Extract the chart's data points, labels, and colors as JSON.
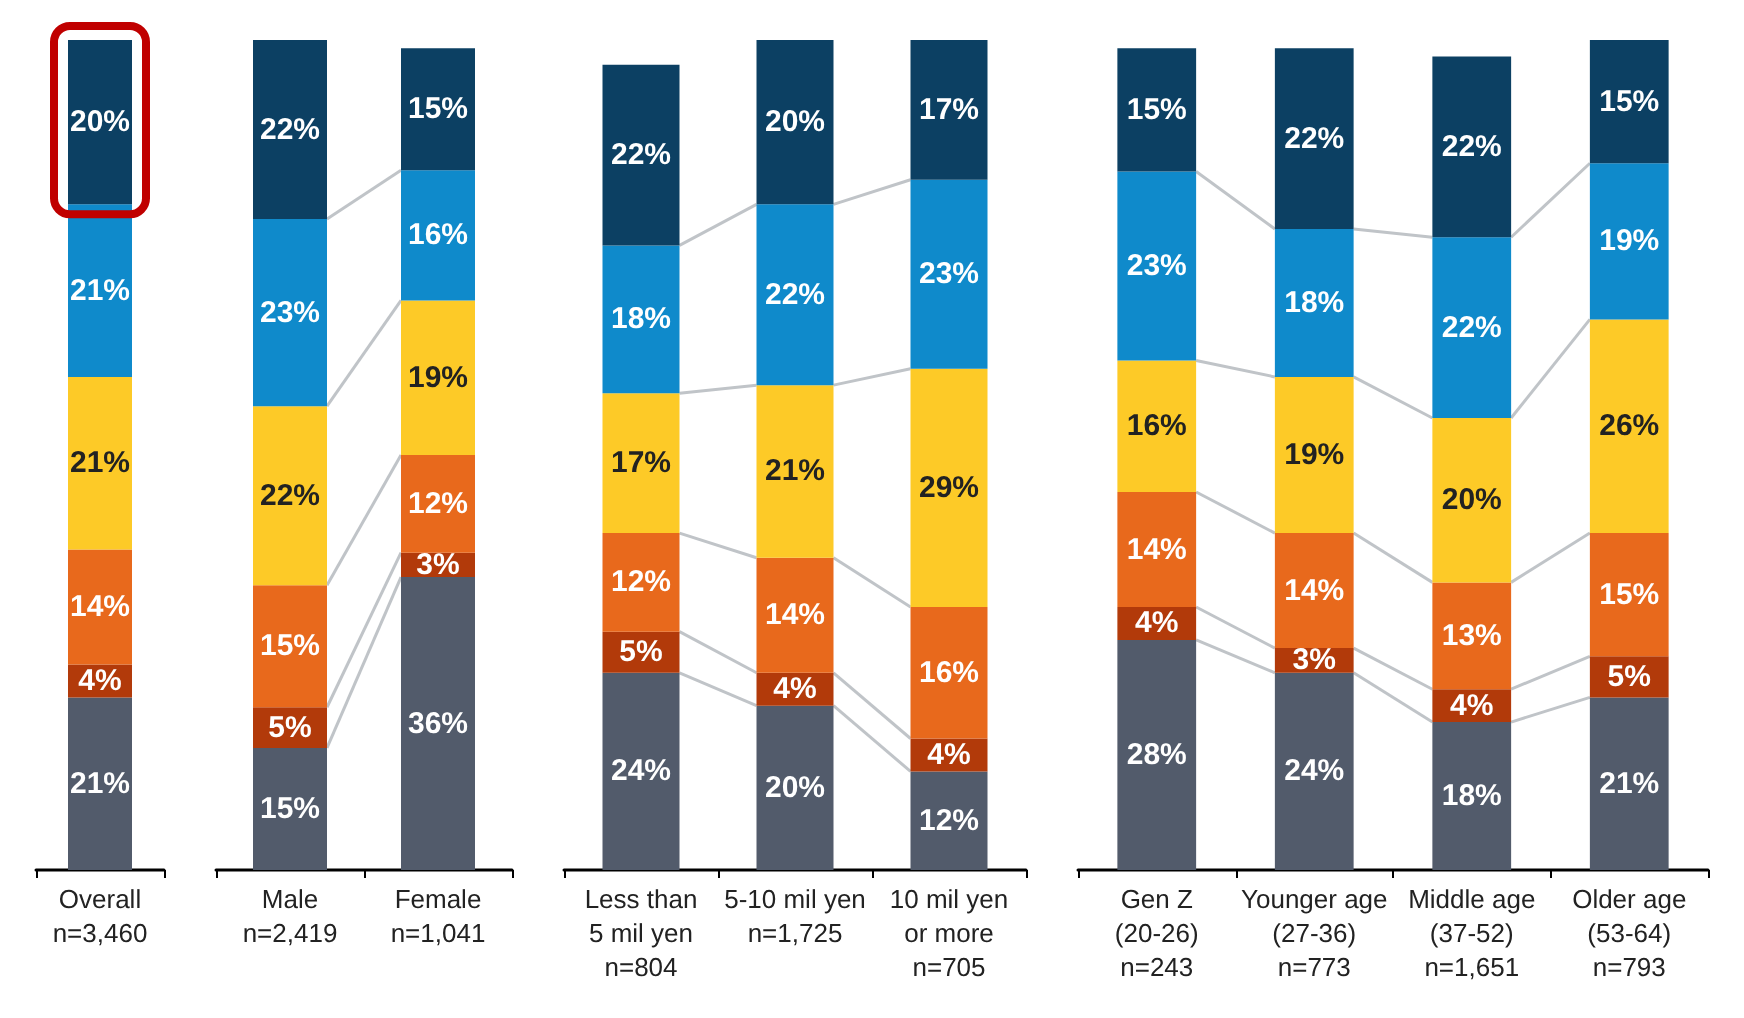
{
  "chart_data": [
    {
      "type": "bar",
      "stacked": true,
      "data_labels": true,
      "categories": [
        "Overall\nn=3,460"
      ],
      "series": [
        {
          "color": "#525b6b",
          "values": [
            21
          ],
          "value_labels": [
            "21%"
          ]
        },
        {
          "color": "#b23a0a",
          "values": [
            4
          ],
          "value_labels": [
            "4%"
          ]
        },
        {
          "color": "#e8691c",
          "values": [
            14
          ],
          "value_labels": [
            "14%"
          ]
        },
        {
          "color": "#fdca27",
          "values": [
            21
          ],
          "value_labels": [
            "21%"
          ]
        },
        {
          "color": "#0f8acb",
          "values": [
            21
          ],
          "value_labels": [
            "21%"
          ]
        },
        {
          "color": "#0c4063",
          "values": [
            20
          ],
          "value_labels": [
            "20%"
          ]
        }
      ]
    },
    {
      "type": "bar",
      "stacked": true,
      "data_labels": true,
      "categories": [
        "Male\nn=2,419",
        "Female\nn=1,041"
      ],
      "series": [
        {
          "color": "#525b6b",
          "values": [
            15,
            36
          ],
          "value_labels": [
            "15%",
            "36%"
          ]
        },
        {
          "color": "#b23a0a",
          "values": [
            5,
            3
          ],
          "value_labels": [
            "5%",
            "3%"
          ]
        },
        {
          "color": "#e8691c",
          "values": [
            15,
            12
          ],
          "value_labels": [
            "15%",
            "12%"
          ]
        },
        {
          "color": "#fdca27",
          "values": [
            22,
            19
          ],
          "value_labels": [
            "22%",
            "19%"
          ]
        },
        {
          "color": "#0f8acb",
          "values": [
            23,
            16
          ],
          "value_labels": [
            "23%",
            "16%"
          ]
        },
        {
          "color": "#0c4063",
          "values": [
            22,
            15
          ],
          "value_labels": [
            "22%",
            "15%"
          ]
        }
      ]
    },
    {
      "type": "bar",
      "stacked": true,
      "data_labels": true,
      "categories": [
        "Less than\n5 mil yen\nn=804",
        "5-10 mil yen\nn=1,725",
        "10 mil yen\nor more\nn=705"
      ],
      "series": [
        {
          "color": "#525b6b",
          "values": [
            24,
            20,
            12
          ],
          "value_labels": [
            "24%",
            "20%",
            "12%"
          ]
        },
        {
          "color": "#b23a0a",
          "values": [
            5,
            4,
            4
          ],
          "value_labels": [
            "5%",
            "4%",
            "4%"
          ]
        },
        {
          "color": "#e8691c",
          "values": [
            12,
            14,
            16
          ],
          "value_labels": [
            "12%",
            "14%",
            "16%"
          ]
        },
        {
          "color": "#fdca27",
          "values": [
            17,
            21,
            29
          ],
          "value_labels": [
            "17%",
            "21%",
            "29%"
          ]
        },
        {
          "color": "#0f8acb",
          "values": [
            18,
            22,
            23
          ],
          "value_labels": [
            "18%",
            "22%",
            "23%"
          ]
        },
        {
          "color": "#0c4063",
          "values": [
            22,
            20,
            17
          ],
          "value_labels": [
            "22%",
            "20%",
            "17%"
          ]
        }
      ]
    },
    {
      "type": "bar",
      "stacked": true,
      "data_labels": true,
      "categories": [
        "Gen Z\n(20-26)\nn=243",
        "Younger age\n(27-36)\nn=773",
        "Middle age\n(37-52)\nn=1,651",
        "Older age\n(53-64)\nn=793"
      ],
      "series": [
        {
          "color": "#525b6b",
          "values": [
            28,
            24,
            18,
            21
          ],
          "value_labels": [
            "28%",
            "24%",
            "18%",
            "21%"
          ]
        },
        {
          "color": "#b23a0a",
          "values": [
            4,
            3,
            4,
            5
          ],
          "value_labels": [
            "4%",
            "3%",
            "4%",
            "5%"
          ]
        },
        {
          "color": "#e8691c",
          "values": [
            14,
            14,
            13,
            15
          ],
          "value_labels": [
            "14%",
            "14%",
            "13%",
            "15%"
          ]
        },
        {
          "color": "#fdca27",
          "values": [
            16,
            19,
            20,
            26
          ],
          "value_labels": [
            "16%",
            "19%",
            "20%",
            "26%"
          ]
        },
        {
          "color": "#0f8acb",
          "values": [
            23,
            18,
            22,
            19
          ],
          "value_labels": [
            "23%",
            "18%",
            "22%",
            "19%"
          ]
        },
        {
          "color": "#0c4063",
          "values": [
            15,
            22,
            22,
            15
          ],
          "value_labels": [
            "15%",
            "22%",
            "22%",
            "15%"
          ]
        }
      ]
    }
  ]
}
